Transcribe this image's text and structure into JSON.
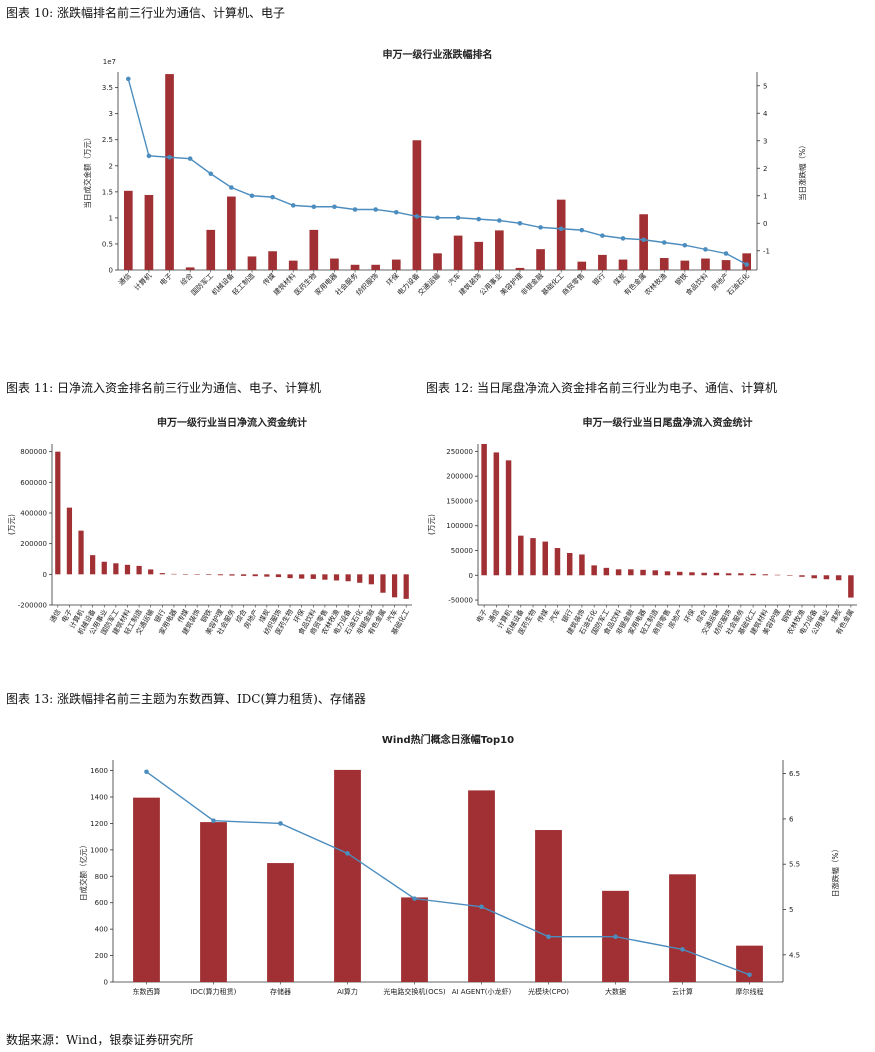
{
  "captions": {
    "fig10": "图表 10: 涨跌幅排名前三行业为通信、计算机、电子",
    "fig11": "图表 11: 日净流入资金排名前三行业为通信、电子、计算机",
    "fig12": "图表 12: 当日尾盘净流入资金排名前三行业为电子、通信、计算机",
    "fig13": "图表 13: 涨跌幅排名前三主题为东数西算、IDC(算力租赁)、存储器",
    "source": "数据来源：Wind，银泰证券研究所"
  },
  "colors": {
    "bar": "#a03033",
    "line": "#4c8dbf",
    "axis": "#333333"
  },
  "chart_data": [
    {
      "type": "bar+line",
      "title": "申万一级行业涨跌幅排名",
      "ylabel": "当日成交金额（万元）",
      "y2label": "当日涨跌幅（%）",
      "y_offset_label": "1e7",
      "ylim": [
        0,
        3.8
      ],
      "y2lim": [
        -1.7,
        5.5
      ],
      "yticks": [
        0,
        0.5,
        1.0,
        1.5,
        2.0,
        2.5,
        3.0,
        3.5
      ],
      "y2ticks": [
        -1,
        0,
        1,
        2,
        3,
        4,
        5
      ],
      "categories": [
        "通信",
        "计算机",
        "电子",
        "综合",
        "国防军工",
        "机械设备",
        "轻工制造",
        "传媒",
        "建筑材料",
        "医药生物",
        "家用电器",
        "社会服务",
        "纺织服饰",
        "环保",
        "电力设备",
        "交通运输",
        "汽车",
        "建筑装饰",
        "公用事业",
        "美容护理",
        "非银金融",
        "基础化工",
        "商贸零售",
        "银行",
        "煤炭",
        "有色金属",
        "农林牧渔",
        "钢铁",
        "食品饮料",
        "房地产",
        "石油石化"
      ],
      "series": [
        {
          "name": "当日成交金额",
          "kind": "bar",
          "values": [
            1.52,
            1.44,
            3.76,
            0.05,
            0.77,
            1.41,
            0.26,
            0.36,
            0.18,
            0.77,
            0.22,
            0.1,
            0.1,
            0.2,
            2.49,
            0.32,
            0.66,
            0.54,
            0.76,
            0.04,
            0.4,
            1.35,
            0.16,
            0.29,
            0.2,
            1.07,
            0.23,
            0.18,
            0.22,
            0.19,
            0.32
          ]
        },
        {
          "name": "当日涨跌幅",
          "kind": "line",
          "values": [
            5.25,
            2.45,
            2.4,
            2.35,
            1.8,
            1.3,
            1.0,
            0.95,
            0.65,
            0.6,
            0.6,
            0.5,
            0.5,
            0.4,
            0.25,
            0.2,
            0.2,
            0.15,
            0.1,
            0.0,
            -0.15,
            -0.2,
            -0.25,
            -0.45,
            -0.55,
            -0.6,
            -0.7,
            -0.8,
            -0.95,
            -1.1,
            -1.5
          ]
        }
      ]
    },
    {
      "type": "bar",
      "title": "申万一级行业当日净流入资金统计",
      "ylabel": "(万元)",
      "ylim": [
        -200000,
        850000
      ],
      "yticks": [
        -200000,
        0,
        200000,
        400000,
        600000,
        800000
      ],
      "categories": [
        "通信",
        "电子",
        "计算机",
        "机械设备",
        "公用事业",
        "国防军工",
        "建筑材料",
        "轻工制造",
        "交通运输",
        "银行",
        "家用电器",
        "传媒",
        "建筑装饰",
        "钢铁",
        "美容护理",
        "社会服务",
        "综合",
        "房地产",
        "煤炭",
        "纺织服饰",
        "医药生物",
        "环保",
        "食品饮料",
        "商贸零售",
        "农林牧渔",
        "电力设备",
        "石油石化",
        "非银金融",
        "有色金属",
        "汽车",
        "基础化工"
      ],
      "values": [
        800000,
        435000,
        285000,
        125000,
        82000,
        72000,
        62000,
        55000,
        32000,
        8000,
        3000,
        -2000,
        -3000,
        -4000,
        -6000,
        -8000,
        -10000,
        -12000,
        -15000,
        -18000,
        -25000,
        -28000,
        -30000,
        -35000,
        -40000,
        -45000,
        -55000,
        -65000,
        -120000,
        -150000,
        -160000
      ]
    },
    {
      "type": "bar",
      "title": "申万一级行业当日尾盘净流入资金统计",
      "ylabel": "(万元)",
      "ylim": [
        -60000,
        265000
      ],
      "yticks": [
        -50000,
        0,
        50000,
        100000,
        150000,
        200000,
        250000
      ],
      "categories": [
        "电子",
        "通信",
        "计算机",
        "机械设备",
        "医药生物",
        "传媒",
        "汽车",
        "银行",
        "建筑装饰",
        "石油石化",
        "国防军工",
        "食品饮料",
        "非银金融",
        "家用电器",
        "轻工制造",
        "商贸零售",
        "房地产",
        "环保",
        "综合",
        "交通运输",
        "纺织服饰",
        "社会服务",
        "基础化工",
        "建筑材料",
        "美容护理",
        "钢铁",
        "农林牧渔",
        "电力设备",
        "公用事业",
        "煤炭",
        "有色金属"
      ],
      "values": [
        265000,
        248000,
        232000,
        80000,
        75000,
        68000,
        55000,
        45000,
        42000,
        20000,
        15000,
        12000,
        12000,
        11000,
        10000,
        8000,
        7000,
        6000,
        5000,
        5000,
        4000,
        4000,
        3000,
        2000,
        1000,
        -1000,
        -3000,
        -6000,
        -8000,
        -10000,
        -45000
      ]
    },
    {
      "type": "bar+line",
      "title": "Wind热门概念日涨幅Top10",
      "ylabel": "日成交额（亿元）",
      "y2label": "日涨跌幅（%）",
      "ylim": [
        0,
        1680
      ],
      "y2lim": [
        4.2,
        6.65
      ],
      "yticks": [
        0,
        200,
        400,
        600,
        800,
        1000,
        1200,
        1400,
        1600
      ],
      "y2ticks": [
        4.5,
        5.0,
        5.5,
        6.0,
        6.5
      ],
      "categories": [
        "东数西算",
        "IDC(算力租赁)",
        "存储器",
        "AI算力",
        "光电路交换机(OCS)",
        "AI AGENT(小龙虾)",
        "光模块(CPO)",
        "大数据",
        "云计算",
        "摩尔线程"
      ],
      "series": [
        {
          "name": "日成交额",
          "kind": "bar",
          "values": [
            1395,
            1210,
            900,
            1605,
            640,
            1450,
            1150,
            690,
            815,
            275
          ]
        },
        {
          "name": "日涨跌幅",
          "kind": "line",
          "values": [
            6.52,
            5.98,
            5.95,
            5.62,
            5.12,
            5.03,
            4.7,
            4.7,
            4.56,
            4.28
          ]
        }
      ]
    }
  ]
}
